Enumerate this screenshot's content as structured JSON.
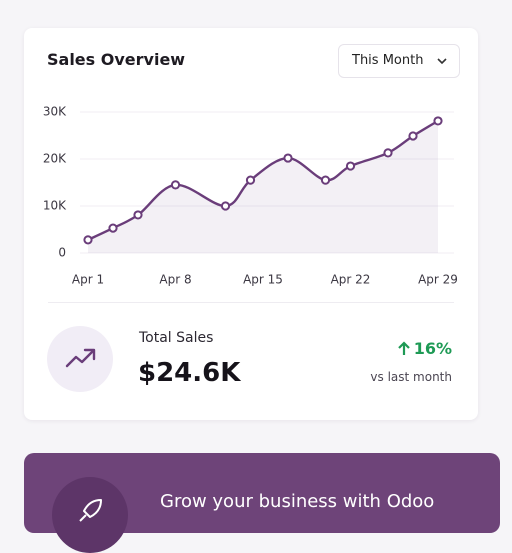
{
  "card": {
    "title": "Sales Overview",
    "period": "This Month"
  },
  "chart_data": {
    "type": "line",
    "x": [
      1,
      3,
      5,
      8,
      12,
      14,
      17,
      20,
      22,
      25,
      27,
      29
    ],
    "series": [
      {
        "name": "Sales",
        "color": "#6a3d7a",
        "values": [
          2800,
          5300,
          8100,
          14500,
          10000,
          15500,
          20200,
          15500,
          18500,
          21300,
          24900,
          28100
        ]
      }
    ],
    "xlim": [
      1,
      29
    ],
    "xticks": [
      {
        "value": 1,
        "label": "Apr 1"
      },
      {
        "value": 8,
        "label": "Apr 8"
      },
      {
        "value": 15,
        "label": "Apr 15"
      },
      {
        "value": 22,
        "label": "Apr 22"
      },
      {
        "value": 29,
        "label": "Apr 29"
      }
    ],
    "ylim": [
      0,
      30000
    ],
    "yticks": [
      0,
      {
        "value": 10000,
        "label": "10K"
      },
      {
        "value": 20000,
        "label": "20K"
      },
      {
        "value": 30000,
        "label": "30K"
      }
    ],
    "grid": true
  },
  "summary": {
    "label": "Total Sales",
    "value": "$24.6K",
    "change": "16%",
    "comparison": "vs last month"
  },
  "banner": {
    "text": "Grow your business with Odoo"
  }
}
